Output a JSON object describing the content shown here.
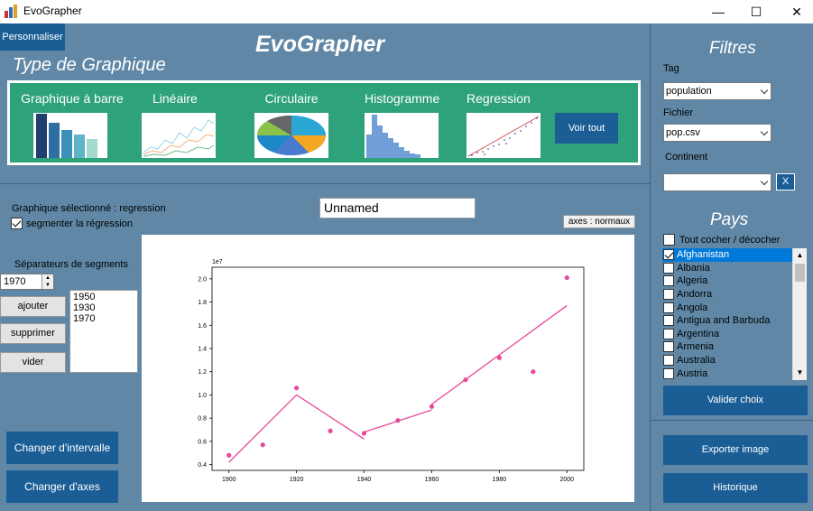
{
  "window": {
    "title": "EvoGrapher",
    "minimize": "—",
    "maximize": "☐",
    "close": "✕"
  },
  "header": {
    "personnaliser_label": "Personnaliser",
    "app_heading": "EvoGrapher",
    "type_heading": "Type de Graphique"
  },
  "chart_types": [
    {
      "label": "Graphique à barre",
      "icon": "bar-chart-thumbnail"
    },
    {
      "label": "Linéaire",
      "icon": "line-chart-thumbnail"
    },
    {
      "label": "Circulaire",
      "icon": "pie-chart-thumbnail"
    },
    {
      "label": "Histogramme",
      "icon": "histogram-thumbnail"
    },
    {
      "label": "Regression",
      "icon": "regression-thumbnail"
    }
  ],
  "voir_tout_label": "Voir tout",
  "graph": {
    "selected_label": "Graphique sélectionné : regression",
    "segment_checkbox_label": "segmenter la régression",
    "segment_checked": true,
    "name_value": "Unnamed",
    "axes_badge": "axes : normaux"
  },
  "segments": {
    "title": "Séparateurs de segments",
    "spin_value": "1970",
    "list": [
      "1950",
      "1930",
      "1970"
    ],
    "ajouter_label": "ajouter",
    "supprimer_label": "supprimer",
    "vider_label": "vider"
  },
  "left_buttons": {
    "intervalle_label": "Changer d'intervalle",
    "axes_label": "Changer d'axes"
  },
  "filters": {
    "heading": "Filtres",
    "tag_label": "Tag",
    "tag_value": "population",
    "fichier_label": "Fichier",
    "fichier_value": "pop.csv",
    "continent_label": "Continent",
    "continent_value": "",
    "clear_label": "X"
  },
  "pays": {
    "heading": "Pays",
    "toggle_all_label": "Tout cocher / décocher",
    "countries": [
      {
        "name": "Afghanistan",
        "checked": true,
        "selected": true
      },
      {
        "name": "Albania",
        "checked": false,
        "selected": false
      },
      {
        "name": "Algeria",
        "checked": false,
        "selected": false
      },
      {
        "name": "Andorra",
        "checked": false,
        "selected": false
      },
      {
        "name": "Angola",
        "checked": false,
        "selected": false
      },
      {
        "name": "Antigua and Barbuda",
        "checked": false,
        "selected": false
      },
      {
        "name": "Argentina",
        "checked": false,
        "selected": false
      },
      {
        "name": "Armenia",
        "checked": false,
        "selected": false
      },
      {
        "name": "Australia",
        "checked": false,
        "selected": false
      },
      {
        "name": "Austria",
        "checked": false,
        "selected": false
      }
    ],
    "valider_label": "Valider choix"
  },
  "right_buttons": {
    "exporter_label": "Exporter image",
    "historique_label": "Historique"
  },
  "colors": {
    "background": "#6088a6",
    "button_blue": "#1b5e96",
    "chart_type_panel": "#2ea27a",
    "regression_pink": "#e8489b"
  },
  "chart_data": {
    "type": "scatter",
    "multiplier_label": "1e7",
    "xticks": [
      "1900",
      "1920",
      "1940",
      "1960",
      "1980",
      "2000"
    ],
    "yticks": [
      "0.4",
      "0.6",
      "0.8",
      "1.0",
      "1.2",
      "1.4",
      "1.6",
      "1.8",
      "2.0"
    ],
    "xlim": [
      1895,
      2005
    ],
    "ylim": [
      0.35,
      2.1
    ],
    "points": [
      {
        "x": 1900,
        "y": 0.48
      },
      {
        "x": 1910,
        "y": 0.57
      },
      {
        "x": 1920,
        "y": 1.06
      },
      {
        "x": 1930,
        "y": 0.69
      },
      {
        "x": 1940,
        "y": 0.67
      },
      {
        "x": 1950,
        "y": 0.78
      },
      {
        "x": 1960,
        "y": 0.9
      },
      {
        "x": 1970,
        "y": 1.13
      },
      {
        "x": 1980,
        "y": 1.32
      },
      {
        "x": 1990,
        "y": 1.2
      },
      {
        "x": 2000,
        "y": 2.01
      }
    ],
    "regression_segments": [
      [
        {
          "x": 1900,
          "y": 0.42
        },
        {
          "x": 1920,
          "y": 1.0
        },
        {
          "x": 1940,
          "y": 0.62
        }
      ],
      [
        {
          "x": 1940,
          "y": 0.68
        },
        {
          "x": 1960,
          "y": 0.87
        }
      ],
      [
        {
          "x": 1960,
          "y": 0.92
        },
        {
          "x": 2000,
          "y": 1.77
        }
      ]
    ],
    "grid": false
  }
}
